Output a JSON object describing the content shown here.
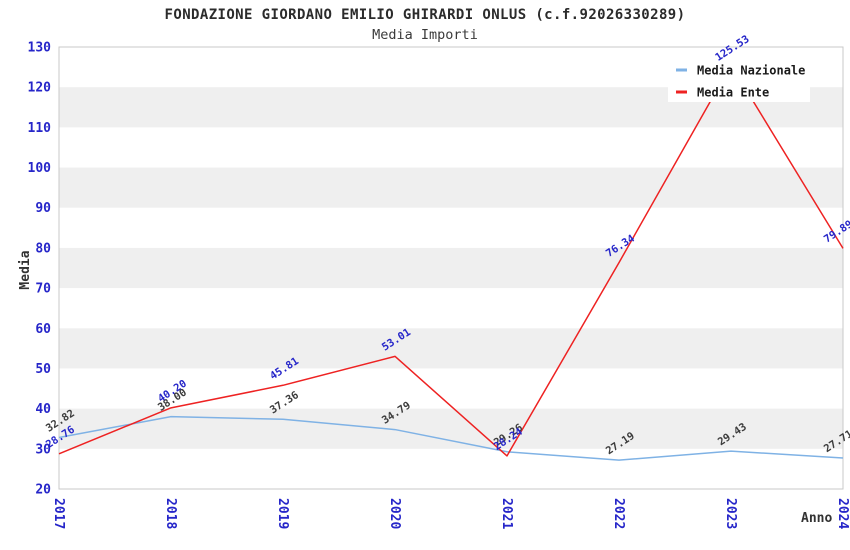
{
  "header": {
    "title": "FONDAZIONE GIORDANO EMILIO GHIRARDI ONLUS (c.f.92026330289)",
    "subtitle": "Media Importi"
  },
  "chart_data": {
    "type": "line",
    "title": "FONDAZIONE GIORDANO EMILIO GHIRARDI ONLUS (c.f.92026330289)",
    "subtitle": "Media Importi",
    "xlabel": "Anno",
    "ylabel": "Media",
    "categories": [
      "2017",
      "2018",
      "2019",
      "2020",
      "2021",
      "2022",
      "2023",
      "2024"
    ],
    "series": [
      {
        "name": "Media Nazionale",
        "color": "#7FB2E5",
        "label_color": "#3C3C3C",
        "values": [
          32.82,
          38.0,
          37.36,
          34.79,
          29.26,
          27.19,
          29.43,
          27.71
        ]
      },
      {
        "name": "Media Ente",
        "color": "#EE2222",
        "label_color": "#2626C9",
        "values": [
          28.76,
          40.2,
          45.81,
          53.01,
          28.24,
          76.34,
          125.53,
          79.89
        ]
      }
    ],
    "ylim": [
      20,
      130
    ],
    "yticks": [
      20,
      30,
      40,
      50,
      60,
      70,
      80,
      90,
      100,
      110,
      120,
      130
    ],
    "grid": "banded-horizontal",
    "band_color": "#EFEFEF",
    "axis_tick_color": "#2626C9",
    "plot_border_color": "#C9C9C9",
    "legend_position": "top-right"
  }
}
